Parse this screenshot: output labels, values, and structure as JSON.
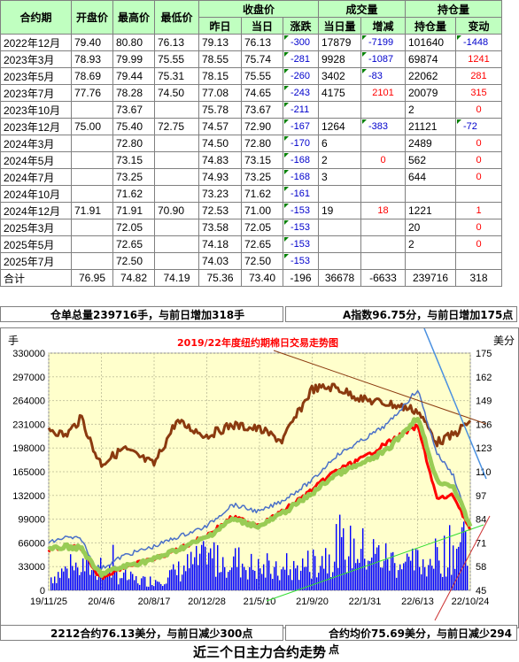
{
  "table": {
    "headers": {
      "contract": "合约期",
      "open": "开盘价",
      "high": "最高价",
      "low": "最低价",
      "close_group": "收盘价",
      "prev": "昨日",
      "today": "当日",
      "change": "涨跌",
      "volume_group": "成交量",
      "vol_today": "当日量",
      "vol_change": "增减",
      "oi_group": "持仓量",
      "oi": "持仓量",
      "oi_change": "变动"
    },
    "rows": [
      {
        "name": "2022年12月",
        "open": "79.40",
        "high": "80.80",
        "low": "76.13",
        "prev": "79.13",
        "today": "76.13",
        "chg": "-300",
        "vol": "17879",
        "vchg": "-7199",
        "oi": "101640",
        "oichg": "-1448",
        "vchg_color": "blue",
        "oichg_color": "blue"
      },
      {
        "name": "2023年3月",
        "open": "78.93",
        "high": "79.99",
        "low": "75.55",
        "prev": "78.55",
        "today": "75.74",
        "chg": "-281",
        "vol": "9928",
        "vchg": "-1087",
        "oi": "69874",
        "oichg": "1241",
        "vchg_color": "blue",
        "oichg_color": "red"
      },
      {
        "name": "2023年5月",
        "open": "78.69",
        "high": "79.44",
        "low": "75.31",
        "prev": "78.15",
        "today": "75.55",
        "chg": "-260",
        "vol": "3402",
        "vchg": "-83",
        "oi": "22062",
        "oichg": "281",
        "vchg_color": "blue",
        "oichg_color": "red"
      },
      {
        "name": "2023年7月",
        "open": "77.76",
        "high": "78.28",
        "low": "74.50",
        "prev": "77.08",
        "today": "74.65",
        "chg": "-243",
        "vol": "4175",
        "vchg": "2101",
        "oi": "20079",
        "oichg": "315",
        "vchg_color": "red",
        "oichg_color": "red"
      },
      {
        "name": "2023年10月",
        "open": "",
        "high": "73.67",
        "low": "",
        "prev": "75.78",
        "today": "73.67",
        "chg": "-211",
        "vol": "",
        "vchg": "",
        "oi": "2",
        "oichg": "0",
        "vchg_color": "",
        "oichg_color": "red"
      },
      {
        "name": "2023年12月",
        "open": "75.00",
        "high": "75.40",
        "low": "72.75",
        "prev": "74.57",
        "today": "72.90",
        "chg": "-167",
        "vol": "1264",
        "vchg": "-383",
        "oi": "21121",
        "oichg": "-72",
        "vchg_color": "blue",
        "oichg_color": "blue"
      },
      {
        "name": "2024年3月",
        "open": "",
        "high": "72.80",
        "low": "",
        "prev": "74.50",
        "today": "72.80",
        "chg": "-170",
        "vol": "6",
        "vchg": "",
        "oi": "2489",
        "oichg": "0",
        "vchg_color": "",
        "oichg_color": "red"
      },
      {
        "name": "2024年5月",
        "open": "",
        "high": "73.15",
        "low": "",
        "prev": "74.83",
        "today": "73.15",
        "chg": "-168",
        "vol": "2",
        "vchg": "0",
        "oi": "562",
        "oichg": "0",
        "vchg_color": "red",
        "oichg_color": "red"
      },
      {
        "name": "2024年7月",
        "open": "",
        "high": "73.25",
        "low": "",
        "prev": "74.93",
        "today": "73.25",
        "chg": "-168",
        "vol": "3",
        "vchg": "",
        "oi": "644",
        "oichg": "0",
        "vchg_color": "",
        "oichg_color": "red"
      },
      {
        "name": "2024年10月",
        "open": "",
        "high": "71.62",
        "low": "",
        "prev": "73.23",
        "today": "71.62",
        "chg": "-161",
        "vol": "",
        "vchg": "",
        "oi": "",
        "oichg": "",
        "vchg_color": "",
        "oichg_color": ""
      },
      {
        "name": "2024年12月",
        "open": "71.91",
        "high": "71.91",
        "low": "70.90",
        "prev": "72.53",
        "today": "71.00",
        "chg": "-153",
        "vol": "19",
        "vchg": "18",
        "oi": "1221",
        "oichg": "1",
        "vchg_color": "red",
        "oichg_color": "red"
      },
      {
        "name": "2025年3月",
        "open": "",
        "high": "72.05",
        "low": "",
        "prev": "73.58",
        "today": "72.05",
        "chg": "-153",
        "vol": "",
        "vchg": "",
        "oi": "20",
        "oichg": "0",
        "vchg_color": "",
        "oichg_color": "red"
      },
      {
        "name": "2025年5月",
        "open": "",
        "high": "72.65",
        "low": "",
        "prev": "74.18",
        "today": "72.65",
        "chg": "-153",
        "vol": "",
        "vchg": "",
        "oi": "2",
        "oichg": "0",
        "vchg_color": "",
        "oichg_color": "red"
      },
      {
        "name": "2025年7月",
        "open": "",
        "high": "72.50",
        "low": "",
        "prev": "74.03",
        "today": "72.50",
        "chg": "-153",
        "vol": "",
        "vchg": "",
        "oi": "",
        "oichg": "",
        "vchg_color": "",
        "oichg_color": ""
      }
    ],
    "total": {
      "name": "合计",
      "open": "76.95",
      "high": "74.82",
      "low": "74.19",
      "prev": "75.36",
      "today": "73.40",
      "chg": "-196",
      "vol": "36678",
      "vchg": "-6633",
      "oi": "239716",
      "oichg": "318"
    }
  },
  "summary": {
    "top_left": "仓单总量239716手，与前日增加318手",
    "top_right": "A指数96.75分，与前日增加175点",
    "bottom_left": "2212合约76.13美分，与前日减少300点",
    "bottom_right": "合约均价75.69美分，与前日减少294点"
  },
  "footer": "近三个日主力合约走势",
  "colors": {
    "header_bg": "#c0ffc0",
    "plot_bg": "#ffffcc",
    "volume": "#0000ff",
    "brown": "#8b3a0f",
    "blue_line": "#4a70c8",
    "red_line": "#ff0000",
    "green_line": "#99cc55",
    "title": "#ff0000"
  },
  "chart_data": {
    "type": "line",
    "title": "2019/22年度纽约期棉日交易走势图",
    "left_unit": "手",
    "right_unit": "美分",
    "left_ticks": [
      "330000",
      "297000",
      "264000",
      "231000",
      "198000",
      "165000",
      "132000",
      "99000",
      "66000",
      "33000",
      "0"
    ],
    "right_ticks": [
      "175",
      "162",
      "149",
      "136",
      "123",
      "110",
      "97",
      "84",
      "71",
      "58",
      "45"
    ],
    "x_ticks": [
      "19/11/25",
      "20/4/6",
      "20/8/17",
      "20/12/28",
      "21/5/10",
      "21/9/20",
      "22/1/31",
      "22/6/13",
      "22/10/24"
    ],
    "ylim_left": [
      0,
      330000
    ],
    "ylim_right": [
      45,
      175
    ],
    "series": [
      {
        "role": "open interest (brown)",
        "axis": "left",
        "color": "#8b3a0f",
        "x": [
          "19/11/25",
          "20/1/6",
          "20/2/17",
          "20/3/16",
          "20/4/6",
          "20/6/1",
          "20/8/17",
          "20/10/12",
          "20/12/28",
          "21/3/1",
          "21/5/10",
          "21/7/5",
          "21/9/20",
          "21/11/15",
          "22/1/31",
          "22/3/28",
          "22/6/13",
          "22/8/1",
          "22/9/12",
          "22/10/24"
        ],
        "values": [
          226000,
          215000,
          240000,
          196000,
          176000,
          197000,
          175000,
          235000,
          215000,
          230000,
          224000,
          208000,
          280000,
          283000,
          265000,
          260000,
          250000,
          206000,
          216000,
          236000
        ]
      },
      {
        "role": "daily high (blue)",
        "axis": "right",
        "color": "#4a70c8",
        "x": [
          "19/11/25",
          "20/1/6",
          "20/2/17",
          "20/3/16",
          "20/4/6",
          "20/6/1",
          "20/8/17",
          "20/10/12",
          "20/12/28",
          "21/3/1",
          "21/5/10",
          "21/7/5",
          "21/9/20",
          "21/11/15",
          "22/1/31",
          "22/3/28",
          "22/6/13",
          "22/8/1",
          "22/9/12",
          "22/10/24"
        ],
        "values": [
          71,
          74,
          73,
          59,
          57,
          64,
          69,
          74,
          80,
          92,
          88,
          94,
          105,
          118,
          128,
          136,
          155,
          120,
          108,
          80
        ]
      },
      {
        "role": "red line",
        "axis": "right",
        "color": "#ff0000",
        "x": [
          "19/11/25",
          "20/1/6",
          "20/2/17",
          "20/3/16",
          "20/4/6",
          "20/6/1",
          "20/8/17",
          "20/10/12",
          "20/12/28",
          "21/3/1",
          "21/5/10",
          "21/7/5",
          "21/9/20",
          "21/11/15",
          "22/1/31",
          "22/3/28",
          "22/6/13",
          "22/8/1",
          "22/9/12",
          "22/10/24"
        ],
        "values": [
          67,
          69,
          68,
          56,
          52,
          58,
          62,
          67,
          75,
          85,
          81,
          88,
          100,
          110,
          118,
          126,
          135,
          95,
          97,
          78
        ]
      },
      {
        "role": "green line",
        "axis": "right",
        "color": "#99cc55",
        "x": [
          "19/11/25",
          "20/1/6",
          "20/2/17",
          "20/3/16",
          "20/4/6",
          "20/6/1",
          "20/8/17",
          "20/10/12",
          "20/12/28",
          "21/3/1",
          "21/5/10",
          "21/7/5",
          "21/9/20",
          "21/11/15",
          "22/1/31",
          "22/3/28",
          "22/6/13",
          "22/8/1",
          "22/9/12",
          "22/10/24"
        ],
        "values": [
          67,
          69,
          68,
          58,
          54,
          58,
          62,
          67,
          74,
          84,
          80,
          87,
          98,
          108,
          115,
          122,
          140,
          105,
          102,
          80
        ]
      }
    ]
  }
}
